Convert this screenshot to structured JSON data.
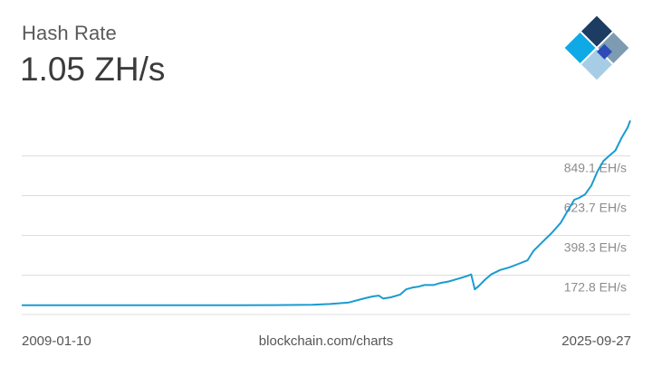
{
  "header": {
    "title": "Hash Rate",
    "headline_value": "1.05 ZH/s"
  },
  "logo": {
    "icon": "blockchain-logo-icon"
  },
  "footer": {
    "start_date": "2009-01-10",
    "source": "blockchain.com/charts",
    "end_date": "2025-09-27"
  },
  "colors": {
    "line": "#1a9bd1",
    "grid": "#dddddd",
    "tick_text": "#8c8c8c"
  },
  "chart_data": {
    "type": "line",
    "title": "Hash Rate",
    "xlabel": "",
    "ylabel": "",
    "xlim": [
      "2009-01-10",
      "2025-09-27"
    ],
    "ylim": [
      -52.6,
      1170
    ],
    "grid": true,
    "y_ticks": [
      {
        "value": 172.8,
        "label": "172.8 EH/s"
      },
      {
        "value": 398.3,
        "label": "398.3 EH/s"
      },
      {
        "value": 623.7,
        "label": "623.7 EH/s"
      },
      {
        "value": 849.1,
        "label": "849.1 EH/s"
      }
    ],
    "series": [
      {
        "values": [
          [
            "2009-01-10",
            0
          ],
          [
            "2012-01-01",
            0
          ],
          [
            "2015-01-01",
            0.3
          ],
          [
            "2016-01-01",
            0.8
          ],
          [
            "2017-01-01",
            2.5
          ],
          [
            "2017-07-01",
            7
          ],
          [
            "2018-01-01",
            15
          ],
          [
            "2018-06-01",
            38
          ],
          [
            "2018-09-01",
            50
          ],
          [
            "2018-11-01",
            55
          ],
          [
            "2018-12-15",
            38
          ],
          [
            "2019-03-01",
            45
          ],
          [
            "2019-06-01",
            60
          ],
          [
            "2019-08-01",
            90
          ],
          [
            "2019-10-01",
            100
          ],
          [
            "2019-12-01",
            105
          ],
          [
            "2020-02-01",
            115
          ],
          [
            "2020-05-01",
            115
          ],
          [
            "2020-07-01",
            125
          ],
          [
            "2020-10-01",
            135
          ],
          [
            "2021-01-01",
            150
          ],
          [
            "2021-04-01",
            165
          ],
          [
            "2021-05-15",
            175
          ],
          [
            "2021-06-20",
            90
          ],
          [
            "2021-08-01",
            110
          ],
          [
            "2021-10-01",
            145
          ],
          [
            "2021-12-01",
            175
          ],
          [
            "2022-03-01",
            200
          ],
          [
            "2022-06-01",
            215
          ],
          [
            "2022-09-01",
            235
          ],
          [
            "2022-12-01",
            255
          ],
          [
            "2023-02-01",
            310
          ],
          [
            "2023-05-01",
            360
          ],
          [
            "2023-08-01",
            410
          ],
          [
            "2023-11-01",
            470
          ],
          [
            "2024-01-01",
            530
          ],
          [
            "2024-03-15",
            600
          ],
          [
            "2024-05-01",
            610
          ],
          [
            "2024-07-01",
            630
          ],
          [
            "2024-09-01",
            680
          ],
          [
            "2024-11-01",
            760
          ],
          [
            "2025-01-01",
            820
          ],
          [
            "2025-03-01",
            850
          ],
          [
            "2025-05-01",
            880
          ],
          [
            "2025-07-01",
            950
          ],
          [
            "2025-09-01",
            1010
          ],
          [
            "2025-09-27",
            1050
          ]
        ]
      }
    ]
  }
}
